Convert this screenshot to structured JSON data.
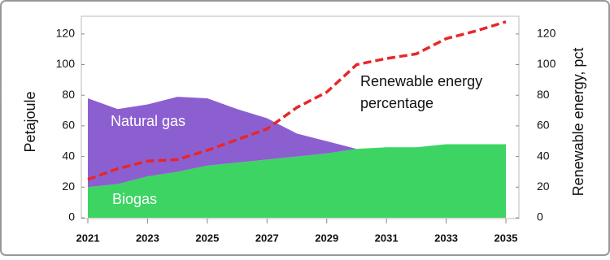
{
  "chart_data": {
    "type": "stacked-area-line",
    "x": [
      2021,
      2022,
      2023,
      2024,
      2025,
      2026,
      2027,
      2028,
      2029,
      2030,
      2031,
      2032,
      2033,
      2034,
      2035
    ],
    "xlim": [
      2021,
      2035
    ],
    "xticks": [
      2021,
      2023,
      2025,
      2027,
      2029,
      2031,
      2033,
      2035
    ],
    "ylabel": "Petajoule",
    "y2label": "Renewable energy, pct",
    "ylim": [
      0,
      130
    ],
    "yticks": [
      0,
      20,
      40,
      60,
      80,
      100,
      120
    ],
    "y2lim": [
      0,
      130
    ],
    "y2ticks": [
      0,
      20,
      40,
      60,
      80,
      100,
      120
    ],
    "series": [
      {
        "name": "Biogas",
        "color": "#3dd463",
        "values": [
          20,
          22,
          27,
          30,
          34,
          36,
          38,
          40,
          42,
          45,
          46,
          46,
          48,
          48,
          48
        ]
      },
      {
        "name": "Natural gas",
        "color": "#8c5fd0",
        "values": [
          58,
          49,
          47,
          49,
          44,
          35,
          27,
          15,
          8,
          0,
          0,
          0,
          0,
          0,
          0
        ]
      },
      {
        "name": "Renewable energy percentage",
        "color": "#e8262a",
        "axis": "y2",
        "values": [
          25,
          32,
          37,
          38,
          44,
          51,
          58,
          72,
          82,
          100,
          104,
          107,
          117,
          122,
          128
        ]
      }
    ],
    "annotations": [
      "Natural gas",
      "Biogas",
      "Renewable energy",
      "percentage"
    ]
  }
}
